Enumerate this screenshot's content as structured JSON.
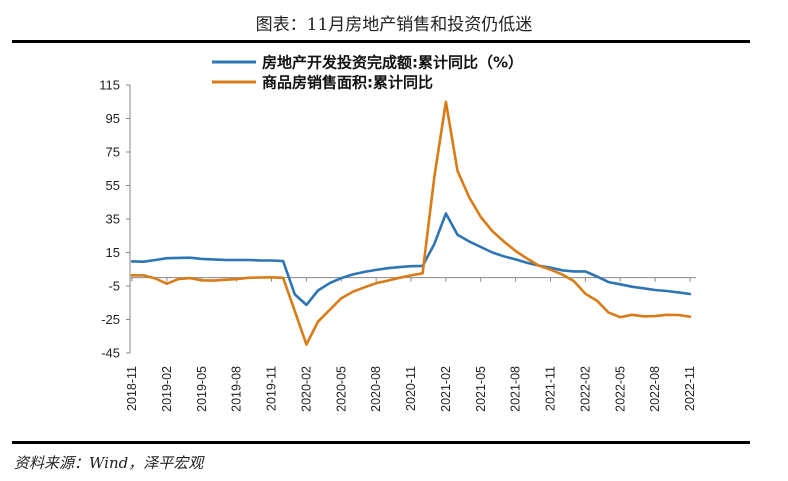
{
  "header": {
    "title": "图表：11月房地产销售和投资仍低迷"
  },
  "footer": {
    "source": "资料来源：Wind，泽平宏观"
  },
  "chart_data": {
    "type": "line",
    "title": "图表：11月房地产销售和投资仍低迷",
    "xlabel": "",
    "ylabel": "",
    "ylim": [
      -45,
      115
    ],
    "yticks": [
      115,
      95,
      75,
      55,
      35,
      15,
      -5,
      -25,
      -45
    ],
    "x_tick_labels": [
      "2018-11",
      "2019-02",
      "2019-05",
      "2019-08",
      "2019-11",
      "2020-02",
      "2020-05",
      "2020-08",
      "2020-11",
      "2021-02",
      "2021-05",
      "2021-08",
      "2021-11",
      "2022-02",
      "2022-05",
      "2022-08",
      "2022-11"
    ],
    "x": [
      "2018-11",
      "2018-12",
      "2019-01",
      "2019-02",
      "2019-03",
      "2019-04",
      "2019-05",
      "2019-06",
      "2019-07",
      "2019-08",
      "2019-09",
      "2019-10",
      "2019-11",
      "2019-12",
      "2020-01",
      "2020-02",
      "2020-03",
      "2020-04",
      "2020-05",
      "2020-06",
      "2020-07",
      "2020-08",
      "2020-09",
      "2020-10",
      "2020-11",
      "2020-12",
      "2021-01",
      "2021-02",
      "2021-03",
      "2021-04",
      "2021-05",
      "2021-06",
      "2021-07",
      "2021-08",
      "2021-09",
      "2021-10",
      "2021-11",
      "2021-12",
      "2022-01",
      "2022-02",
      "2022-03",
      "2022-04",
      "2022-05",
      "2022-06",
      "2022-07",
      "2022-08",
      "2022-09",
      "2022-10",
      "2022-11"
    ],
    "series": [
      {
        "name": "房地产开发投资完成额:累计同比（%）",
        "color": "#2e75b6",
        "values": [
          9.7,
          9.5,
          10.5,
          11.6,
          11.8,
          11.9,
          11.2,
          10.9,
          10.6,
          10.5,
          10.5,
          10.3,
          10.2,
          9.9,
          -10,
          -16.3,
          -7.7,
          -3.3,
          -0.3,
          1.9,
          3.4,
          4.6,
          5.6,
          6.3,
          6.8,
          7.0,
          20,
          38.3,
          25.6,
          21.6,
          18.3,
          15.0,
          12.7,
          10.9,
          8.8,
          7.2,
          6.0,
          4.4,
          3.7,
          3.7,
          0.7,
          -2.7,
          -4.0,
          -5.4,
          -6.4,
          -7.4,
          -8.0,
          -8.8,
          -9.8
        ]
      },
      {
        "name": "商品房销售面积:累计同比",
        "color": "#d97b17",
        "values": [
          1.4,
          1.3,
          -0.5,
          -3.6,
          -0.9,
          -0.3,
          -1.6,
          -1.8,
          -1.3,
          -0.9,
          -0.1,
          0.1,
          0.2,
          -0.1,
          -20,
          -39.9,
          -26.3,
          -19.3,
          -12.3,
          -8.4,
          -5.8,
          -3.3,
          -1.8,
          -0.1,
          1.3,
          2.6,
          60,
          104.9,
          63.8,
          48.1,
          36.2,
          27.7,
          21.5,
          15.9,
          11.3,
          7.2,
          4.8,
          1.9,
          -2.0,
          -9.6,
          -13.8,
          -20.9,
          -23.6,
          -22.2,
          -23.1,
          -23.0,
          -22.2,
          -22.3,
          -23.3
        ]
      }
    ],
    "legend_position": "top-center"
  }
}
